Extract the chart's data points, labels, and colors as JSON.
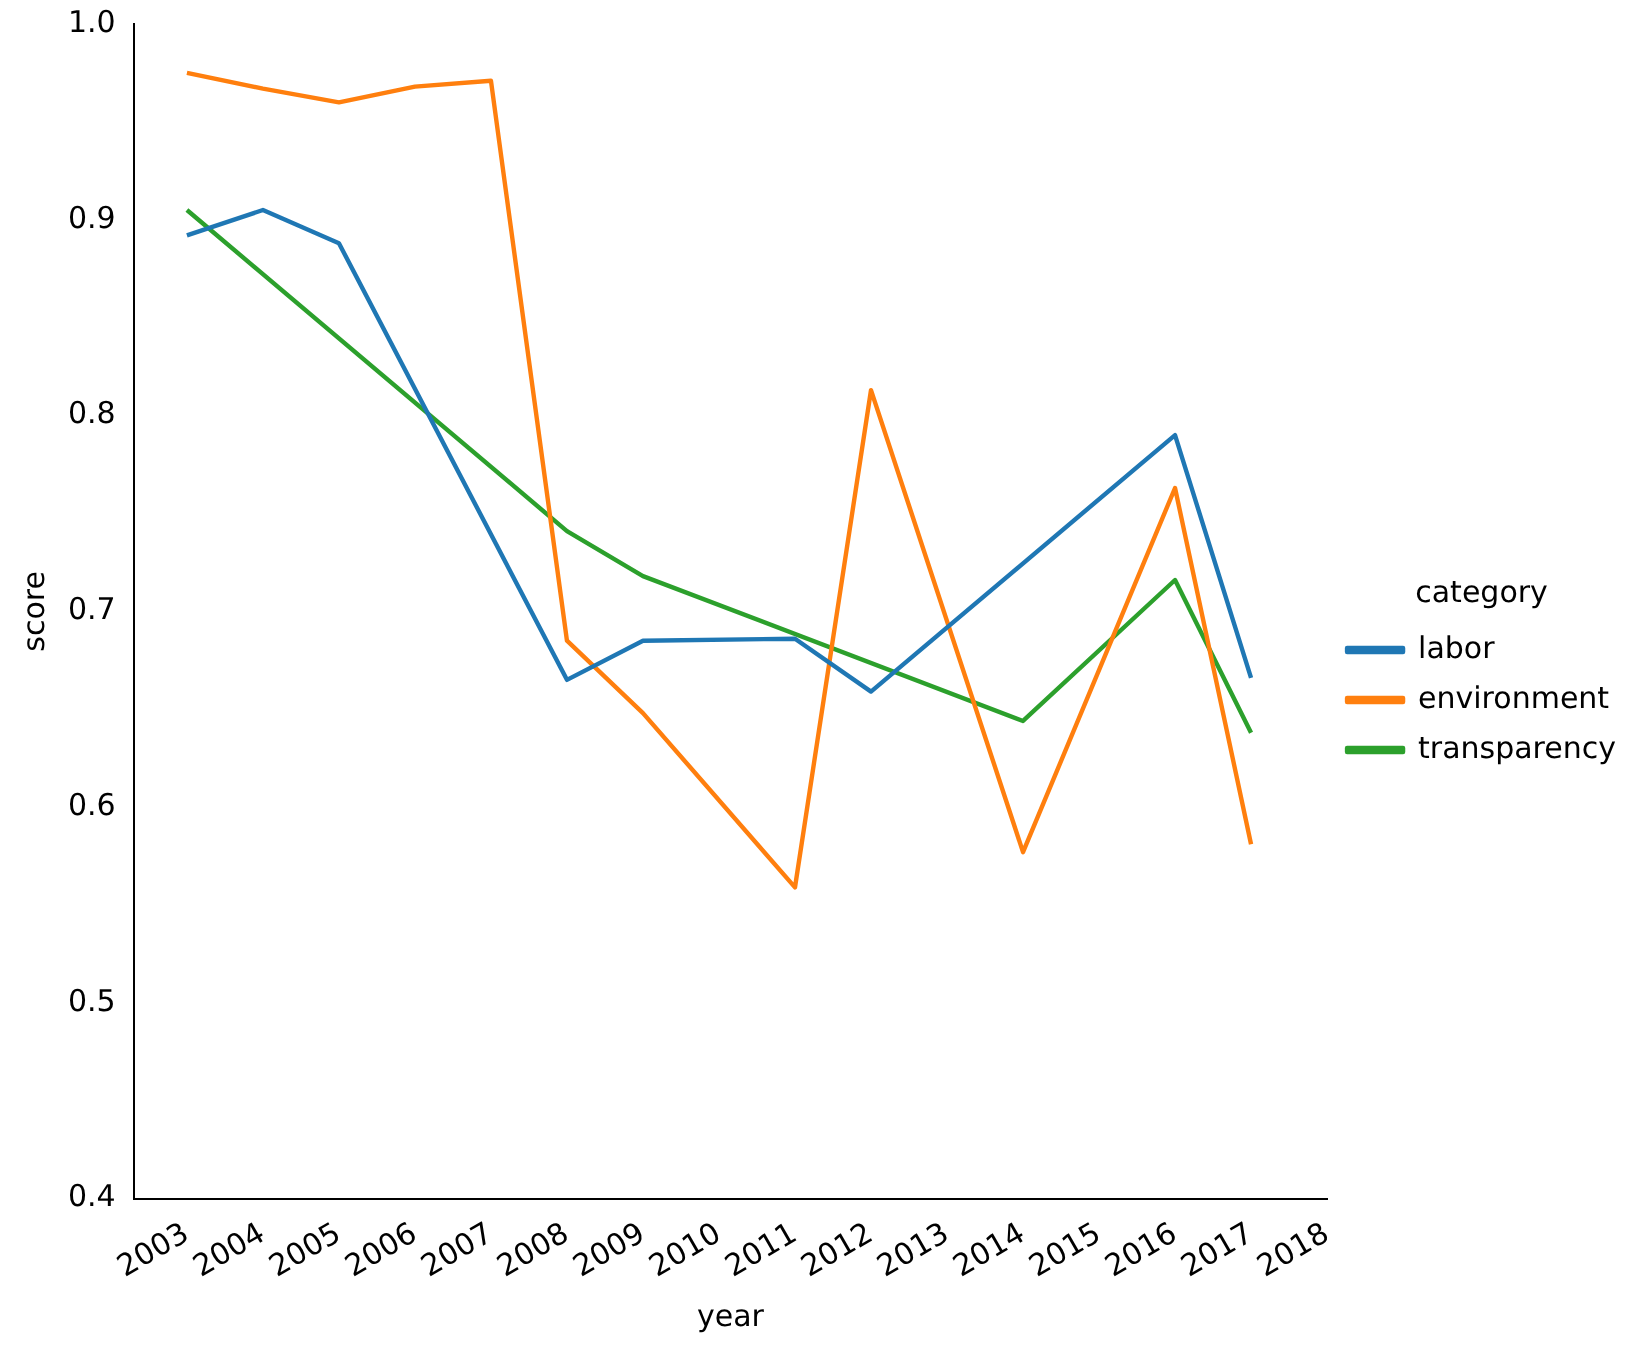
{
  "chart_data": {
    "type": "line",
    "xlabel": "year",
    "ylabel": "score",
    "legend_title": "category",
    "legend": "right",
    "grid": false,
    "marker": "none",
    "line_style": "solid",
    "xlim": [
      2002.3,
      2018
    ],
    "xticks": [
      2003,
      2004,
      2005,
      2006,
      2007,
      2008,
      2009,
      2010,
      2011,
      2012,
      2013,
      2014,
      2015,
      2016,
      2017,
      2018
    ],
    "ylim": [
      0.4,
      1.0
    ],
    "yticks": [
      0.4,
      0.5,
      0.6,
      0.7,
      0.8,
      0.9,
      {
        "value": 1.0,
        "label": "1.0"
      }
    ],
    "series": [
      {
        "name": "labor",
        "color": "#1f77b4",
        "x": [
          2003,
          2004,
          2005,
          2008,
          2009,
          2011,
          2012,
          2016,
          2017
        ],
        "values": [
          0.892,
          0.905,
          0.888,
          0.665,
          0.685,
          0.686,
          0.659,
          0.79,
          0.666
        ]
      },
      {
        "name": "environment",
        "color": "#ff7f0e",
        "x": [
          2003,
          2004,
          2005,
          2006,
          2007,
          2008,
          2009,
          2011,
          2012,
          2014,
          2016,
          2017
        ],
        "values": [
          0.975,
          0.967,
          0.96,
          0.968,
          0.971,
          0.685,
          0.648,
          0.559,
          0.813,
          0.577,
          0.763,
          0.581
        ]
      },
      {
        "name": "transparency",
        "color": "#2ca02c",
        "x": [
          2003,
          2008,
          2009,
          2014,
          2016,
          2017
        ],
        "values": [
          0.905,
          0.741,
          0.718,
          0.644,
          0.716,
          0.638
        ]
      }
    ]
  }
}
